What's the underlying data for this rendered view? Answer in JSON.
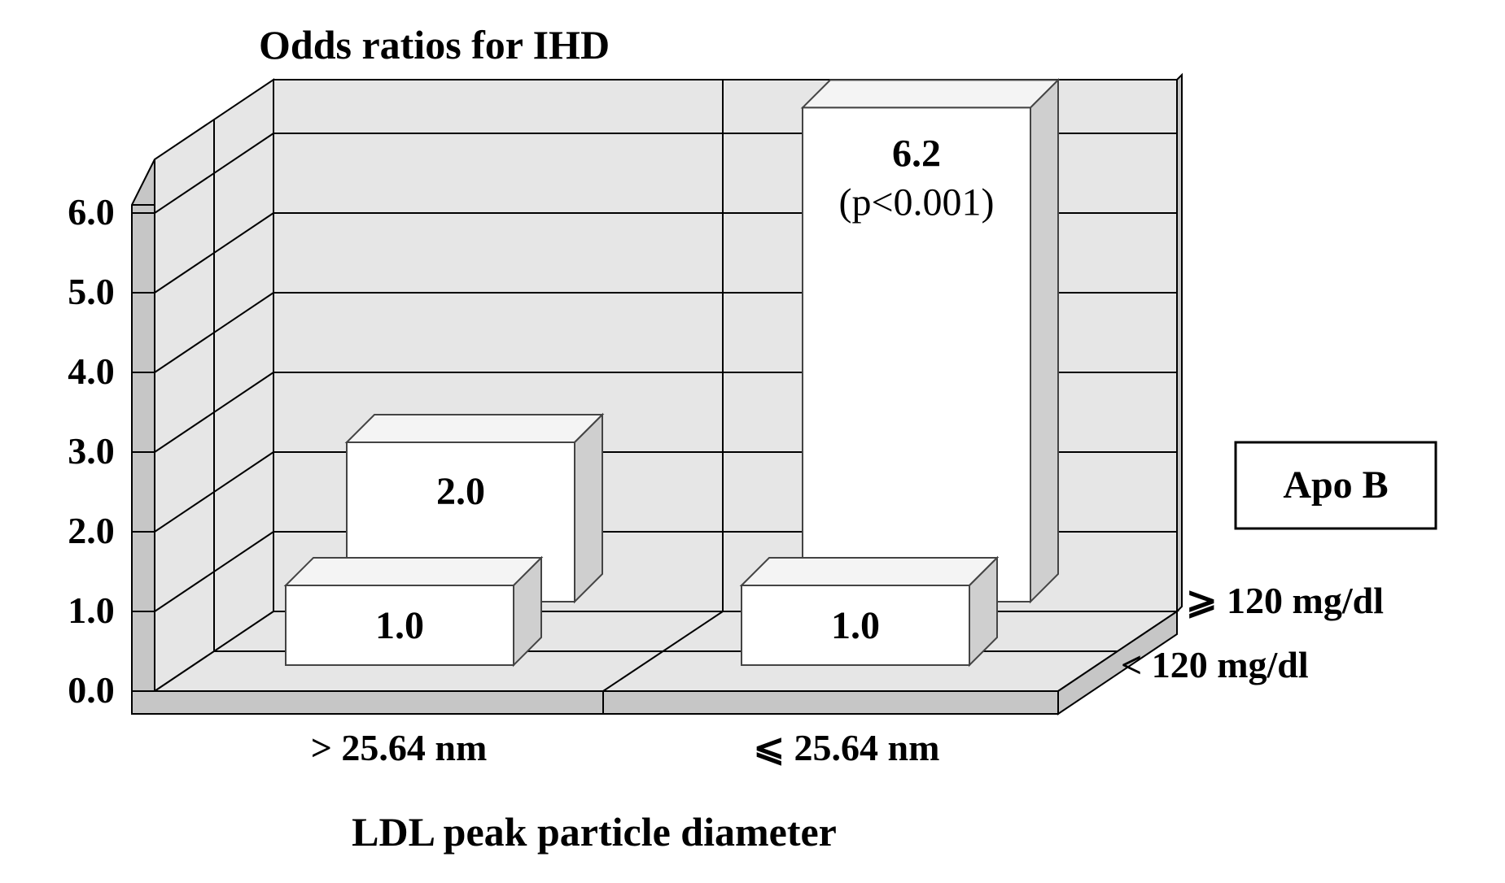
{
  "chart_data": {
    "type": "bar",
    "title": "Odds ratios for IHD",
    "xlabel": "LDL peak particle diameter",
    "ylim": [
      0,
      6
    ],
    "yticks": [
      "0.0",
      "1.0",
      "2.0",
      "3.0",
      "4.0",
      "5.0",
      "6.0"
    ],
    "categories": [
      "> 25.64 nm",
      "⩽ 25.64 nm"
    ],
    "legend_title": "Apo B",
    "series": [
      {
        "name": "< 120 mg/dl",
        "values": [
          1.0,
          1.0
        ],
        "labels": [
          "1.0",
          "1.0"
        ]
      },
      {
        "name": "⩾ 120 mg/dl",
        "values": [
          2.0,
          6.2
        ],
        "labels": [
          "2.0",
          "6.2"
        ]
      }
    ],
    "annotations": [
      {
        "series": 1,
        "category": 1,
        "text": "(p<0.001)"
      }
    ],
    "grid": true,
    "legend_position": "right"
  }
}
